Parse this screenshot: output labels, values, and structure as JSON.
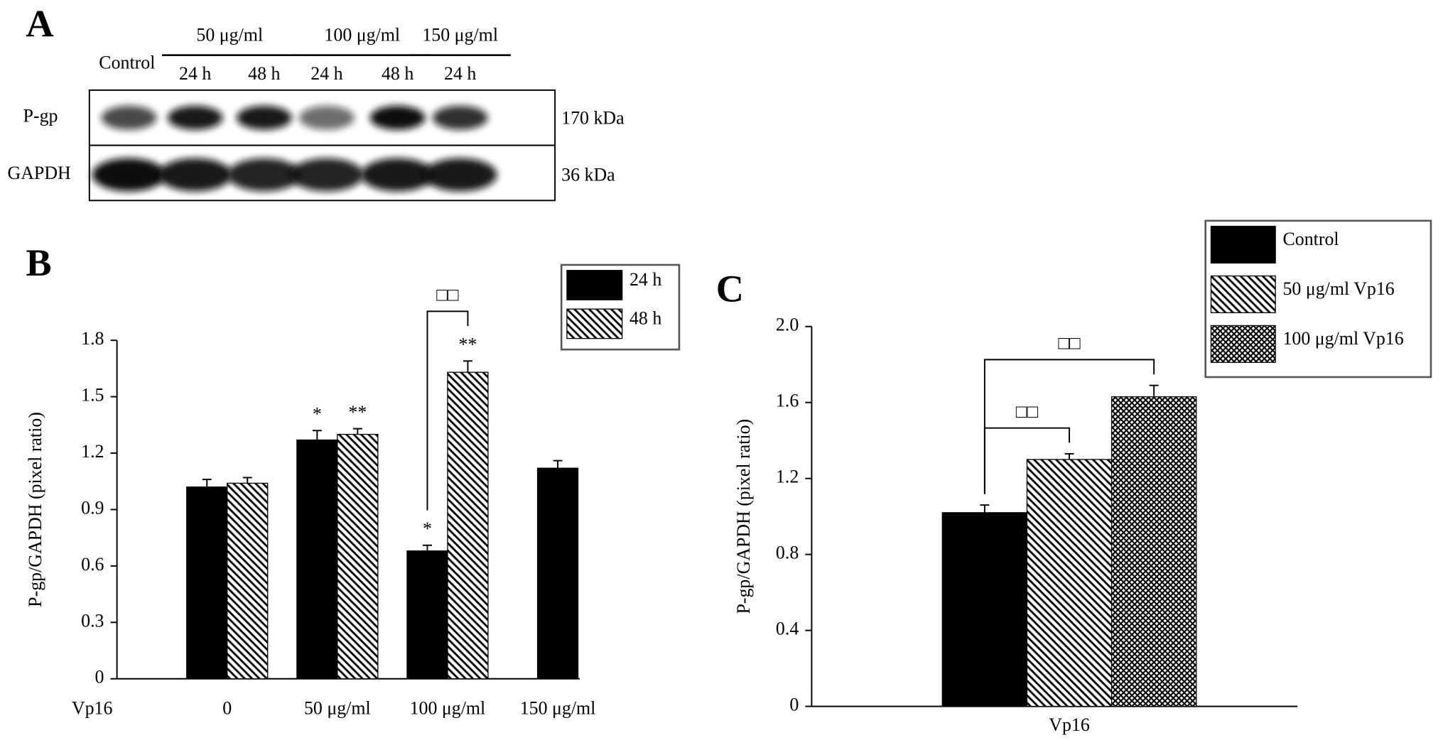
{
  "blot": {
    "panel": "A",
    "control": "Control",
    "groups": [
      {
        "label": "50 μg/ml",
        "lanes": [
          "24 h",
          "48 h"
        ]
      },
      {
        "label": "100 μg/ml",
        "lanes": [
          "24 h",
          "48 h"
        ]
      },
      {
        "label": "150 μg/ml",
        "lanes": [
          "24 h"
        ]
      }
    ],
    "rows": [
      {
        "label": "P-gp",
        "size": "170 kDa"
      },
      {
        "label": "GAPDH",
        "size": "36 kDa"
      }
    ]
  },
  "chart_data": [
    {
      "type": "bar",
      "panel": "B",
      "ylabel": "P-gp/GAPDH (pixel ratio)",
      "xlabel": "Vp16",
      "categories": [
        "0",
        "50 μg/ml",
        "100 μg/ml",
        "150 μg/ml"
      ],
      "series": [
        {
          "name": "24 h",
          "color": "#000000",
          "pattern": "solid",
          "values": [
            1.02,
            1.27,
            0.68,
            1.12
          ],
          "errors": [
            0.04,
            0.05,
            0.03,
            0.04
          ],
          "significance": [
            null,
            "*",
            "*",
            null
          ]
        },
        {
          "name": "48 h",
          "color": "#000000",
          "pattern": "hatch",
          "values": [
            1.04,
            1.3,
            1.63,
            null
          ],
          "errors": [
            0.03,
            0.03,
            0.06,
            null
          ],
          "significance": [
            null,
            "**",
            "**",
            null
          ]
        }
      ],
      "ylim": [
        0,
        1.8
      ],
      "yticks": [
        0,
        0.3,
        0.6,
        0.9,
        1.2,
        1.5,
        1.8
      ],
      "brackets": [
        {
          "label": "□□",
          "from": [
            0,
            2
          ],
          "to": [
            1,
            2
          ]
        }
      ],
      "legend": "upper right"
    },
    {
      "type": "bar",
      "panel": "C",
      "ylabel": "P-gp/GAPDH (pixel ratio)",
      "categories": [
        "Vp16"
      ],
      "series": [
        {
          "name": "Control",
          "color": "#000000",
          "pattern": "solid",
          "values": [
            1.02
          ],
          "errors": [
            0.04
          ]
        },
        {
          "name": "50 μg/ml Vp16",
          "color": "#000000",
          "pattern": "hatch",
          "values": [
            1.3
          ],
          "errors": [
            0.03
          ]
        },
        {
          "name": "100 μg/ml Vp16",
          "color": "#000000",
          "pattern": "crosshatch",
          "values": [
            1.63
          ],
          "errors": [
            0.06
          ]
        }
      ],
      "ylim": [
        0,
        2
      ],
      "yticks": [
        0,
        0.4,
        0.8,
        1.2,
        1.6,
        {
          "value": 2,
          "label": "2.0"
        }
      ],
      "brackets": [
        {
          "label": "□□",
          "from": [
            0,
            0
          ],
          "to": [
            2,
            0
          ]
        },
        {
          "label": "□□",
          "from": [
            0,
            0
          ],
          "to": [
            1,
            0
          ]
        }
      ],
      "legend": "upper right"
    }
  ]
}
